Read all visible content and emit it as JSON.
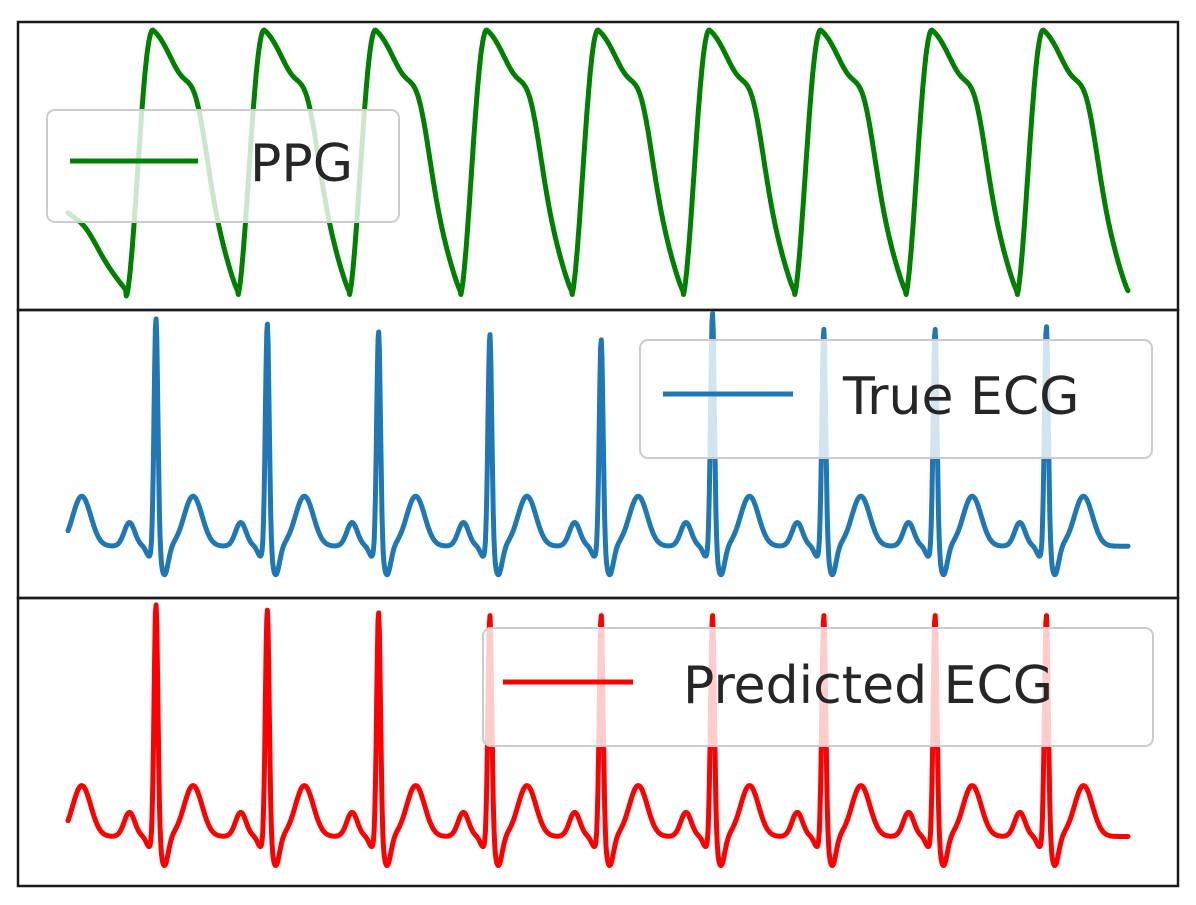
{
  "chart_data": [
    {
      "type": "line",
      "title": "",
      "xlabel": "",
      "ylabel": "",
      "grid": false,
      "ticks_visible": false,
      "legend_placement": "center-left",
      "series": [
        {
          "name": "PPG",
          "color": "#008000",
          "peak_times": [
            0.08,
            0.185,
            0.29,
            0.395,
            0.5,
            0.605,
            0.71,
            0.815,
            0.92
          ],
          "trough_times": [
            0.055,
            0.16,
            0.265,
            0.37,
            0.475,
            0.58,
            0.685,
            0.79,
            0.895,
            1.0
          ]
        }
      ]
    },
    {
      "type": "line",
      "title": "",
      "xlabel": "",
      "ylabel": "",
      "grid": false,
      "ticks_visible": false,
      "legend_placement": "upper-right",
      "series": [
        {
          "name": "True ECG",
          "color": "#1f77b4",
          "r_peak_times": [
            0.083,
            0.188,
            0.293,
            0.398,
            0.503,
            0.608,
            0.713,
            0.818,
            0.923
          ],
          "r_peak_amplitudes": [
            0.98,
            0.96,
            0.93,
            0.92,
            0.9,
            1.0,
            0.94,
            0.94,
            0.95
          ]
        }
      ]
    },
    {
      "type": "line",
      "title": "",
      "xlabel": "",
      "ylabel": "",
      "grid": false,
      "ticks_visible": false,
      "legend_placement": "upper-right",
      "series": [
        {
          "name": "Predicted ECG",
          "color": "#ff0000",
          "r_peak_times": [
            0.083,
            0.188,
            0.293,
            0.398,
            0.503,
            0.608,
            0.713,
            0.818,
            0.923
          ],
          "r_peak_amplitudes": [
            0.98,
            0.96,
            0.95,
            0.94,
            0.94,
            0.94,
            0.94,
            0.94,
            0.94
          ]
        }
      ]
    }
  ]
}
